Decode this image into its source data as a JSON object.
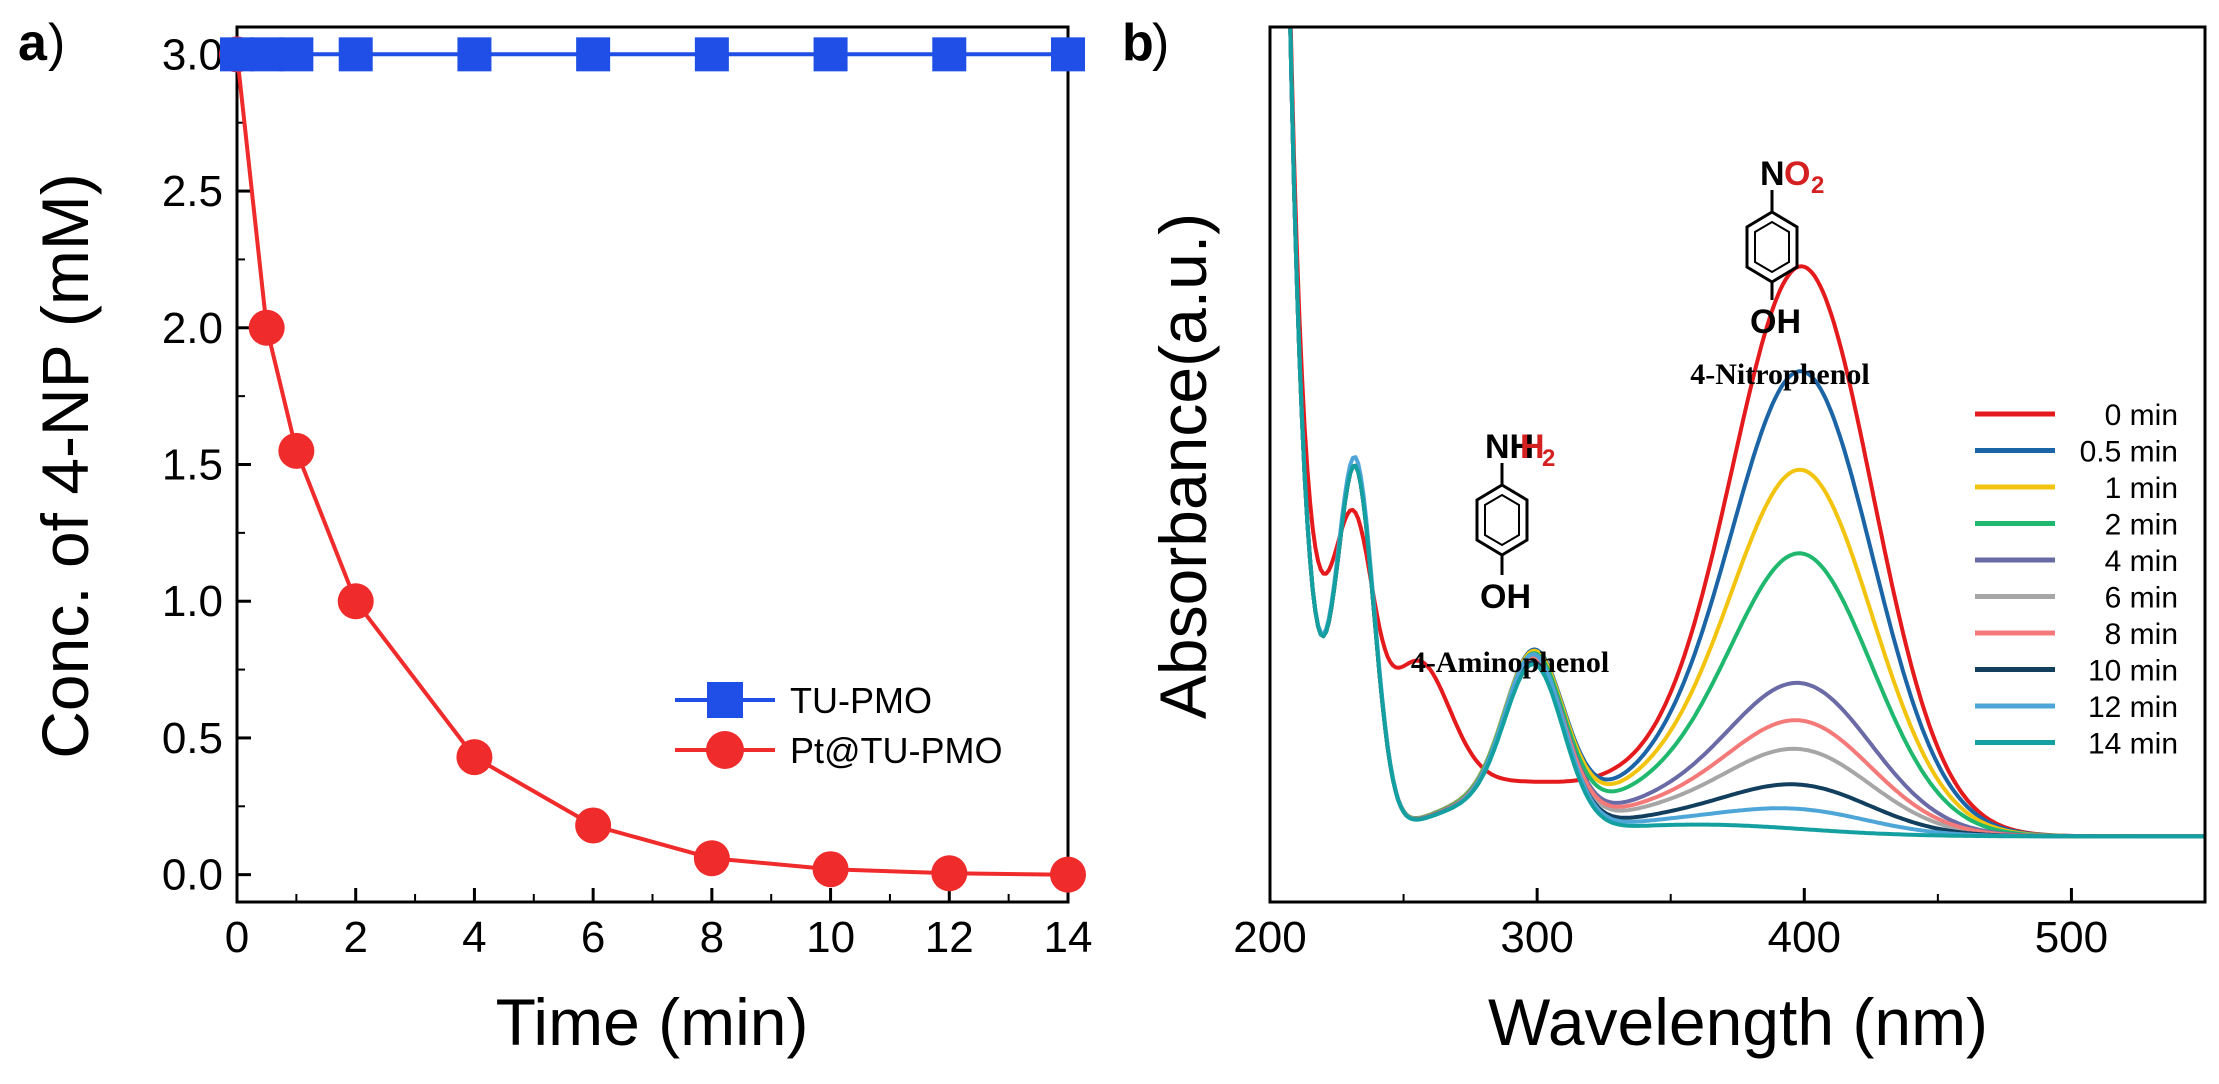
{
  "colors": {
    "tu_pmo": "#1f4fe6",
    "pt_tu_pmo": "#f02b2b",
    "heteroatom_red": "#d42020"
  },
  "chart_data": [
    {
      "type": "line",
      "panel_label": "a",
      "title": "",
      "xlabel": "Time (min)",
      "ylabel": "Conc. of 4-NP (mM)",
      "xlim": [
        0,
        14
      ],
      "ylim": [
        -0.1,
        3.1
      ],
      "xticks": [
        0,
        2,
        4,
        6,
        8,
        10,
        12,
        14
      ],
      "xtick_labels": [
        "0",
        "2",
        "4",
        "6",
        "8",
        "10",
        "12",
        "14"
      ],
      "yticks": [
        0.0,
        0.5,
        1.0,
        1.5,
        2.0,
        2.5,
        3.0
      ],
      "ytick_labels": [
        "0.0",
        "0.5",
        "1.0",
        "1.5",
        "2.0",
        "2.5",
        "3.0"
      ],
      "legend_position": "bottom-right",
      "series": [
        {
          "name": "TU-PMO",
          "marker": "square",
          "color": "#1f4fe6",
          "x": [
            0,
            0.5,
            1,
            2,
            4,
            6,
            8,
            10,
            12,
            14
          ],
          "y": [
            3.0,
            3.0,
            3.0,
            3.0,
            3.0,
            3.0,
            3.0,
            3.0,
            3.0,
            3.0
          ]
        },
        {
          "name": "Pt@TU-PMO",
          "marker": "circle",
          "color": "#f02b2b",
          "x": [
            0,
            0.5,
            1,
            2,
            4,
            6,
            8,
            10,
            12,
            14
          ],
          "y": [
            3.0,
            2.0,
            1.55,
            1.0,
            0.43,
            0.18,
            0.06,
            0.02,
            0.005,
            0.0
          ]
        }
      ]
    },
    {
      "type": "line",
      "panel_label": "b",
      "title": "",
      "xlabel": "Wavelength (nm)",
      "ylabel": "Absorbance(a.u.)",
      "xlim": [
        200,
        550
      ],
      "ylim": [
        0,
        1.0
      ],
      "xticks": [
        200,
        300,
        400,
        500
      ],
      "xtick_labels": [
        "200",
        "300",
        "400",
        "500"
      ],
      "legend_position": "right",
      "annotations": [
        {
          "label": "4-Aminophenol",
          "top_group": "NH",
          "top_sub": "2",
          "bottom_group": "OH",
          "wavelength": 300
        },
        {
          "label": "4-Nitrophenol",
          "top_group": "N",
          "top_red": "O",
          "top_sub": "2",
          "bottom_group": "OH",
          "wavelength": 400
        }
      ],
      "series": [
        {
          "name": "0 min",
          "color": "#e41a1c",
          "peak400": 0.61,
          "min400": 0.15,
          "peak300": 0.0,
          "shoulder": 1
        },
        {
          "name": "0.5 min",
          "color": "#1b65a6",
          "peak400": 0.49,
          "min400": 0.15,
          "peak300": 0.18,
          "shoulder": 0
        },
        {
          "name": "1 min",
          "color": "#f2c40f",
          "peak400": 0.38,
          "min400": 0.14,
          "peak300": 0.18,
          "shoulder": 0
        },
        {
          "name": "2 min",
          "color": "#1fb86e",
          "peak400": 0.29,
          "min400": 0.12,
          "peak300": 0.18,
          "shoulder": 0
        },
        {
          "name": "4 min",
          "color": "#6a6aa6",
          "peak400": 0.15,
          "min400": 0.09,
          "peak300": 0.18,
          "shoulder": 0
        },
        {
          "name": "6 min",
          "color": "#a6a6a6",
          "peak400": 0.08,
          "min400": 0.07,
          "peak300": 0.18,
          "shoulder": 0
        },
        {
          "name": "8 min",
          "color": "#f47a7a",
          "peak400": 0.11,
          "min400": 0.08,
          "peak300": 0.18,
          "shoulder": 0
        },
        {
          "name": "10 min",
          "color": "#123f5e",
          "peak400": 0.045,
          "min400": 0.05,
          "peak300": 0.18,
          "shoulder": 0
        },
        {
          "name": "12 min",
          "color": "#4ea6d8",
          "peak400": 0.02,
          "min400": 0.04,
          "peak300": 0.19,
          "shoulder": 0
        },
        {
          "name": "14 min",
          "color": "#14a0a0",
          "peak400": 0.0,
          "min400": 0.03,
          "peak300": 0.18,
          "shoulder": 0
        }
      ]
    }
  ]
}
